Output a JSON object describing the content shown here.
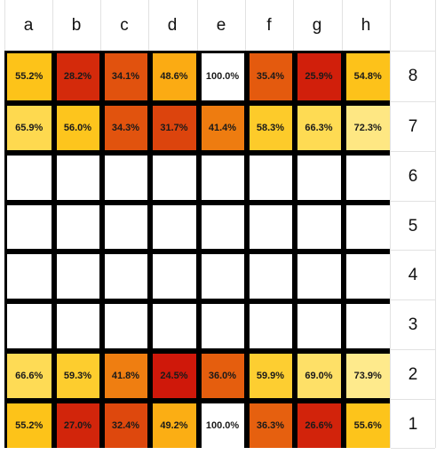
{
  "files": [
    "a",
    "b",
    "c",
    "d",
    "e",
    "f",
    "g",
    "h"
  ],
  "ranks": [
    "8",
    "7",
    "6",
    "5",
    "4",
    "3",
    "2",
    "1"
  ],
  "cells": [
    [
      {
        "text": "55.2%",
        "color": "#fdc319"
      },
      {
        "text": "28.2%",
        "color": "#d42a0b"
      },
      {
        "text": "34.1%",
        "color": "#e1520e"
      },
      {
        "text": "48.6%",
        "color": "#fbab13"
      },
      {
        "text": "100.0%",
        "color": "#ffffff"
      },
      {
        "text": "35.4%",
        "color": "#e45a0e"
      },
      {
        "text": "25.9%",
        "color": "#d11f0b"
      },
      {
        "text": "54.8%",
        "color": "#fdc21a"
      }
    ],
    [
      {
        "text": "65.9%",
        "color": "#fed94f"
      },
      {
        "text": "56.0%",
        "color": "#fdc51d"
      },
      {
        "text": "34.3%",
        "color": "#e1530e"
      },
      {
        "text": "31.7%",
        "color": "#dc440d"
      },
      {
        "text": "41.4%",
        "color": "#ee7c10"
      },
      {
        "text": "58.3%",
        "color": "#fdcb2a"
      },
      {
        "text": "66.3%",
        "color": "#fedb53"
      },
      {
        "text": "72.3%",
        "color": "#fee783"
      }
    ],
    [
      {
        "text": "",
        "color": "#ffffff"
      },
      {
        "text": "",
        "color": "#ffffff"
      },
      {
        "text": "",
        "color": "#ffffff"
      },
      {
        "text": "",
        "color": "#ffffff"
      },
      {
        "text": "",
        "color": "#ffffff"
      },
      {
        "text": "",
        "color": "#ffffff"
      },
      {
        "text": "",
        "color": "#ffffff"
      },
      {
        "text": "",
        "color": "#ffffff"
      }
    ],
    [
      {
        "text": "",
        "color": "#ffffff"
      },
      {
        "text": "",
        "color": "#ffffff"
      },
      {
        "text": "",
        "color": "#ffffff"
      },
      {
        "text": "",
        "color": "#ffffff"
      },
      {
        "text": "",
        "color": "#ffffff"
      },
      {
        "text": "",
        "color": "#ffffff"
      },
      {
        "text": "",
        "color": "#ffffff"
      },
      {
        "text": "",
        "color": "#ffffff"
      }
    ],
    [
      {
        "text": "",
        "color": "#ffffff"
      },
      {
        "text": "",
        "color": "#ffffff"
      },
      {
        "text": "",
        "color": "#ffffff"
      },
      {
        "text": "",
        "color": "#ffffff"
      },
      {
        "text": "",
        "color": "#ffffff"
      },
      {
        "text": "",
        "color": "#ffffff"
      },
      {
        "text": "",
        "color": "#ffffff"
      },
      {
        "text": "",
        "color": "#ffffff"
      }
    ],
    [
      {
        "text": "",
        "color": "#ffffff"
      },
      {
        "text": "",
        "color": "#ffffff"
      },
      {
        "text": "",
        "color": "#ffffff"
      },
      {
        "text": "",
        "color": "#ffffff"
      },
      {
        "text": "",
        "color": "#ffffff"
      },
      {
        "text": "",
        "color": "#ffffff"
      },
      {
        "text": "",
        "color": "#ffffff"
      },
      {
        "text": "",
        "color": "#ffffff"
      }
    ],
    [
      {
        "text": "66.6%",
        "color": "#fedb55"
      },
      {
        "text": "59.3%",
        "color": "#fdcd2e"
      },
      {
        "text": "41.8%",
        "color": "#ef7e11"
      },
      {
        "text": "24.5%",
        "color": "#cf180a"
      },
      {
        "text": "36.0%",
        "color": "#e55e0e"
      },
      {
        "text": "59.9%",
        "color": "#fdce31"
      },
      {
        "text": "69.0%",
        "color": "#fee067"
      },
      {
        "text": "73.9%",
        "color": "#feea8c"
      }
    ],
    [
      {
        "text": "55.2%",
        "color": "#fdc319"
      },
      {
        "text": "27.0%",
        "color": "#d2250b"
      },
      {
        "text": "32.4%",
        "color": "#de480d"
      },
      {
        "text": "49.2%",
        "color": "#fbae14"
      },
      {
        "text": "100.0%",
        "color": "#ffffff"
      },
      {
        "text": "36.3%",
        "color": "#e6600f"
      },
      {
        "text": "26.6%",
        "color": "#d2230b"
      },
      {
        "text": "55.6%",
        "color": "#fdc41b"
      }
    ]
  ]
}
